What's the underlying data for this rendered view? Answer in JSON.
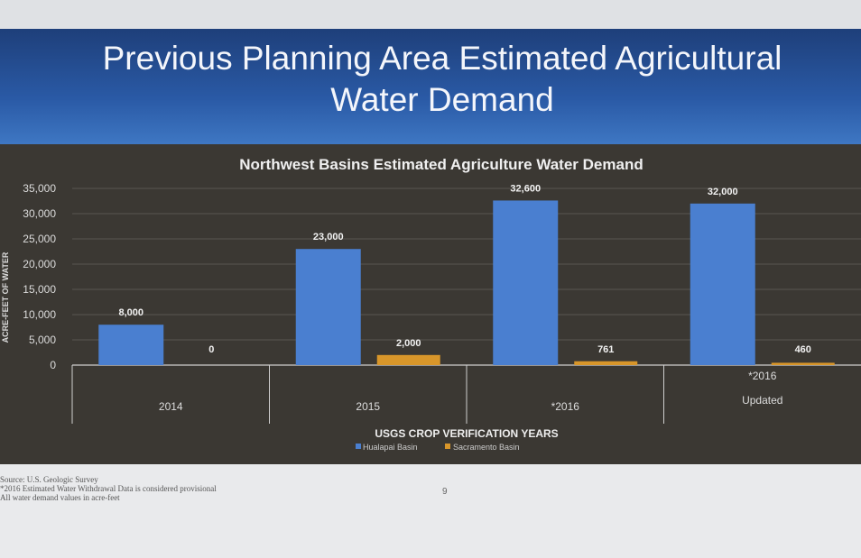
{
  "slide": {
    "title_line1": "Previous Planning Area Estimated Agricultural",
    "title_line2": "Water Demand",
    "notes": [
      "Source: U.S. Geologic Survey",
      "*2016 Estimated Water Withdrawal Data is considered provisional",
      "All water demand values in acre-feet"
    ],
    "page_number": "9"
  },
  "colors": {
    "hualapai": "#4a7fd0",
    "sacramento": "#d8962a",
    "background": "#3b3833"
  },
  "chart_data": {
    "type": "bar",
    "title": "Northwest Basins Estimated Agriculture Water Demand",
    "xlabel": "USGS CROP VERIFICATION YEARS",
    "ylabel": "ACRE-FEET OF WATER",
    "categories": [
      [
        "2014"
      ],
      [
        "2015"
      ],
      [
        "*2016"
      ],
      [
        "*2016",
        "Updated"
      ]
    ],
    "ylim": [
      0,
      35000
    ],
    "yticks": [
      "0",
      "5,000",
      "10,000",
      "15,000",
      "20,000",
      "25,000",
      "30,000",
      "35,000"
    ],
    "grid": true,
    "legend_position": "bottom",
    "series": [
      {
        "name": "Hualapai Basin",
        "values": [
          8000,
          23000,
          32600,
          32000
        ],
        "labels": [
          "8,000",
          "23,000",
          "32,600",
          "32,000"
        ]
      },
      {
        "name": "Sacramento Basin",
        "values": [
          0,
          2000,
          761,
          460
        ],
        "labels": [
          "0",
          "2,000",
          "761",
          "460"
        ]
      }
    ]
  }
}
